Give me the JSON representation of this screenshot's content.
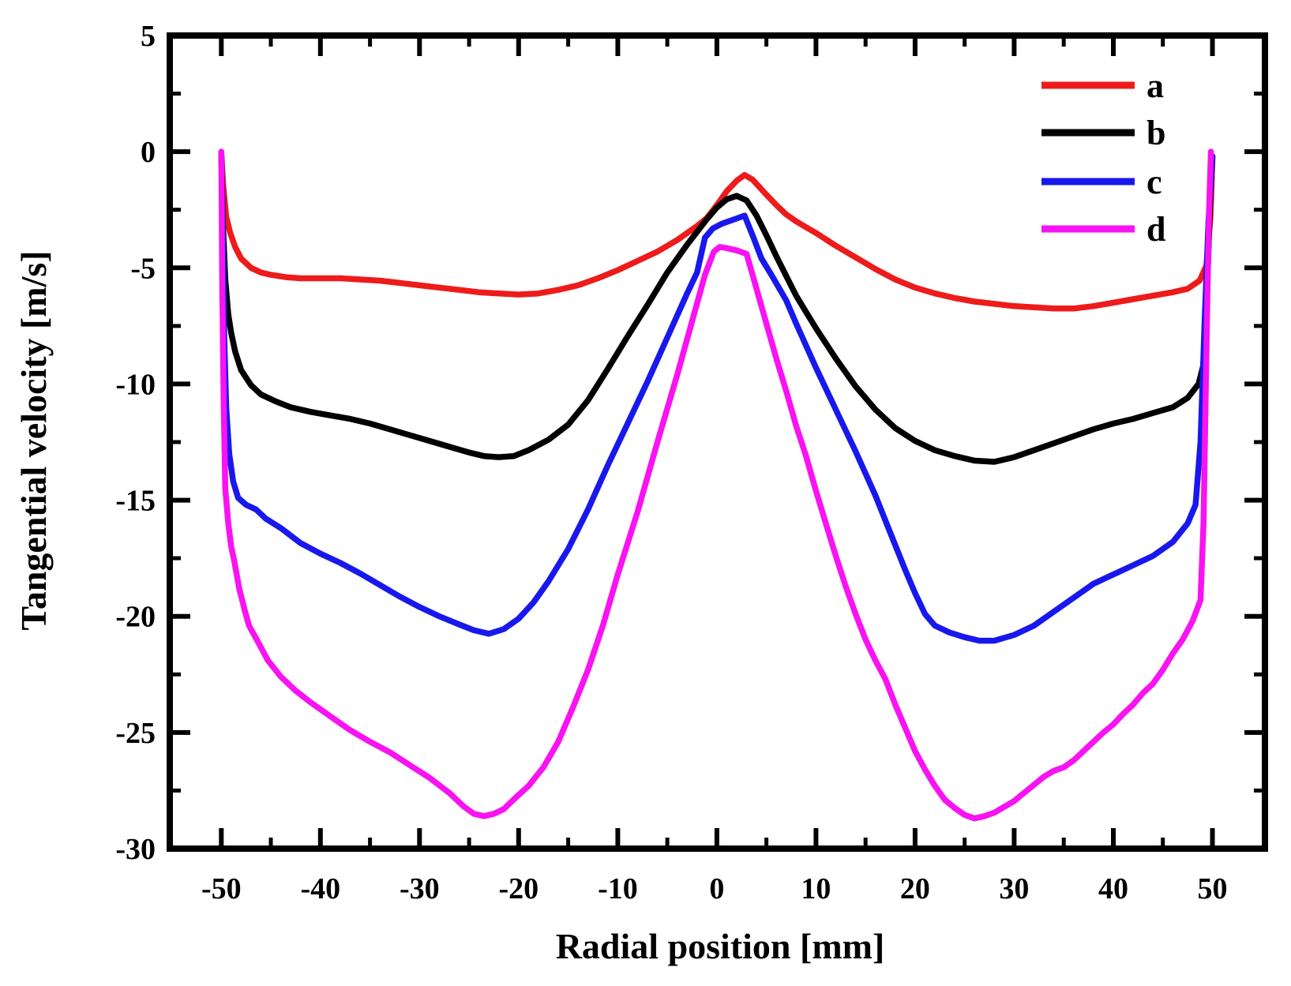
{
  "figure": {
    "background": "#ffffff"
  },
  "chart_data": {
    "type": "line",
    "title": "",
    "xlabel": "Radial position [mm]",
    "ylabel": "Tangential velocity [m/s]",
    "xlim": [
      -55.2,
      55.3
    ],
    "ylim": [
      -30,
      5
    ],
    "grid": "off",
    "legend_position": "top-right-inside",
    "frame_color": "#000000",
    "x_major_ticks": [
      -50,
      -40,
      -30,
      -20,
      -10,
      0,
      10,
      20,
      30,
      40,
      50
    ],
    "x_tick_labels": [
      "-50",
      "-40",
      "-30",
      "-20",
      "-10",
      "0",
      "10",
      "20",
      "30",
      "40",
      "50"
    ],
    "x_minor_ticks": [
      -45,
      -35,
      -25,
      -15,
      -5,
      5,
      15,
      25,
      35,
      45
    ],
    "y_major_ticks": [
      5,
      0,
      -5,
      -10,
      -15,
      -20,
      -25,
      -30
    ],
    "y_tick_labels": [
      "5",
      "0",
      "-5",
      "-10",
      "-15",
      "-20",
      "-25",
      "-30"
    ],
    "y_minor_ticks": [
      2.5,
      -2.5,
      -7.5,
      -12.5,
      -17.5,
      -22.5,
      -27.5
    ],
    "series": [
      {
        "name": "a",
        "color": "#ee1b1b",
        "points": [
          [
            -50,
            -0.1
          ],
          [
            -49.8,
            -1.5
          ],
          [
            -49.5,
            -2.8
          ],
          [
            -49.1,
            -3.5
          ],
          [
            -48.6,
            -4.1
          ],
          [
            -48,
            -4.6
          ],
          [
            -47,
            -5.0
          ],
          [
            -46,
            -5.2
          ],
          [
            -45,
            -5.3
          ],
          [
            -43.5,
            -5.4
          ],
          [
            -42,
            -5.45
          ],
          [
            -40,
            -5.45
          ],
          [
            -38,
            -5.45
          ],
          [
            -36,
            -5.5
          ],
          [
            -34,
            -5.55
          ],
          [
            -32,
            -5.65
          ],
          [
            -30,
            -5.75
          ],
          [
            -28,
            -5.85
          ],
          [
            -26,
            -5.95
          ],
          [
            -24,
            -6.05
          ],
          [
            -22,
            -6.1
          ],
          [
            -20,
            -6.15
          ],
          [
            -18,
            -6.1
          ],
          [
            -16,
            -5.95
          ],
          [
            -14,
            -5.75
          ],
          [
            -12,
            -5.45
          ],
          [
            -10,
            -5.1
          ],
          [
            -8,
            -4.7
          ],
          [
            -6,
            -4.3
          ],
          [
            -4,
            -3.8
          ],
          [
            -2,
            -3.2
          ],
          [
            -1,
            -2.85
          ],
          [
            0,
            -2.3
          ],
          [
            1,
            -1.7
          ],
          [
            2,
            -1.25
          ],
          [
            2.8,
            -1.0
          ],
          [
            3.6,
            -1.2
          ],
          [
            5,
            -1.85
          ],
          [
            6,
            -2.3
          ],
          [
            7,
            -2.7
          ],
          [
            8,
            -3.0
          ],
          [
            9,
            -3.25
          ],
          [
            10,
            -3.5
          ],
          [
            12,
            -4.05
          ],
          [
            14,
            -4.55
          ],
          [
            16,
            -5.05
          ],
          [
            18,
            -5.5
          ],
          [
            20,
            -5.85
          ],
          [
            22,
            -6.1
          ],
          [
            24,
            -6.3
          ],
          [
            26,
            -6.45
          ],
          [
            28,
            -6.55
          ],
          [
            30,
            -6.65
          ],
          [
            32,
            -6.7
          ],
          [
            34,
            -6.75
          ],
          [
            36,
            -6.75
          ],
          [
            38,
            -6.65
          ],
          [
            40,
            -6.5
          ],
          [
            42,
            -6.35
          ],
          [
            44,
            -6.2
          ],
          [
            46,
            -6.05
          ],
          [
            47.5,
            -5.9
          ],
          [
            48.7,
            -5.55
          ],
          [
            49.4,
            -4.9
          ],
          [
            49.8,
            -2.8
          ],
          [
            50,
            -0.3
          ]
        ]
      },
      {
        "name": "b",
        "color": "#000000",
        "points": [
          [
            -50,
            -0.1
          ],
          [
            -49.85,
            -3.0
          ],
          [
            -49.6,
            -5.5
          ],
          [
            -49.3,
            -7.0
          ],
          [
            -49,
            -7.8
          ],
          [
            -48.6,
            -8.6
          ],
          [
            -48,
            -9.4
          ],
          [
            -47,
            -10.05
          ],
          [
            -46,
            -10.45
          ],
          [
            -44.5,
            -10.75
          ],
          [
            -43,
            -11.0
          ],
          [
            -41,
            -11.2
          ],
          [
            -39,
            -11.35
          ],
          [
            -37,
            -11.5
          ],
          [
            -35,
            -11.7
          ],
          [
            -33,
            -11.95
          ],
          [
            -31,
            -12.2
          ],
          [
            -29,
            -12.45
          ],
          [
            -27,
            -12.7
          ],
          [
            -25,
            -12.95
          ],
          [
            -23.5,
            -13.1
          ],
          [
            -22,
            -13.15
          ],
          [
            -20.5,
            -13.1
          ],
          [
            -19,
            -12.85
          ],
          [
            -17,
            -12.4
          ],
          [
            -15,
            -11.75
          ],
          [
            -13,
            -10.7
          ],
          [
            -11,
            -9.35
          ],
          [
            -9,
            -7.95
          ],
          [
            -7,
            -6.6
          ],
          [
            -5,
            -5.2
          ],
          [
            -3,
            -4.0
          ],
          [
            -1,
            -2.9
          ],
          [
            0,
            -2.4
          ],
          [
            1,
            -2.05
          ],
          [
            2,
            -1.9
          ],
          [
            3,
            -2.1
          ],
          [
            4,
            -2.75
          ],
          [
            5,
            -3.6
          ],
          [
            6,
            -4.5
          ],
          [
            7,
            -5.35
          ],
          [
            8,
            -6.2
          ],
          [
            9,
            -6.9
          ],
          [
            10,
            -7.6
          ],
          [
            12,
            -8.9
          ],
          [
            14,
            -10.1
          ],
          [
            16,
            -11.1
          ],
          [
            18,
            -11.9
          ],
          [
            20,
            -12.45
          ],
          [
            22,
            -12.85
          ],
          [
            24,
            -13.1
          ],
          [
            26,
            -13.3
          ],
          [
            28,
            -13.35
          ],
          [
            30,
            -13.15
          ],
          [
            32,
            -12.85
          ],
          [
            34,
            -12.55
          ],
          [
            36,
            -12.25
          ],
          [
            38,
            -11.95
          ],
          [
            40,
            -11.7
          ],
          [
            42,
            -11.5
          ],
          [
            44,
            -11.25
          ],
          [
            46,
            -11.0
          ],
          [
            47.5,
            -10.6
          ],
          [
            48.6,
            -10.0
          ],
          [
            49.2,
            -9.0
          ],
          [
            49.5,
            -5.5
          ],
          [
            49.8,
            -1.8
          ],
          [
            50,
            -0.2
          ]
        ]
      },
      {
        "name": "c",
        "color": "#1818ee",
        "points": [
          [
            -50,
            -0.1
          ],
          [
            -49.85,
            -4.0
          ],
          [
            -49.7,
            -8.0
          ],
          [
            -49.5,
            -11.0
          ],
          [
            -49.2,
            -13.0
          ],
          [
            -48.8,
            -14.2
          ],
          [
            -48.3,
            -14.9
          ],
          [
            -47.5,
            -15.2
          ],
          [
            -46.5,
            -15.4
          ],
          [
            -45.5,
            -15.8
          ],
          [
            -44,
            -16.2
          ],
          [
            -42,
            -16.85
          ],
          [
            -40,
            -17.3
          ],
          [
            -38,
            -17.7
          ],
          [
            -36,
            -18.15
          ],
          [
            -34,
            -18.65
          ],
          [
            -32,
            -19.15
          ],
          [
            -30,
            -19.6
          ],
          [
            -28,
            -20.0
          ],
          [
            -26,
            -20.35
          ],
          [
            -24.5,
            -20.6
          ],
          [
            -23,
            -20.75
          ],
          [
            -21.5,
            -20.55
          ],
          [
            -20,
            -20.1
          ],
          [
            -18.5,
            -19.4
          ],
          [
            -17,
            -18.5
          ],
          [
            -15,
            -17.1
          ],
          [
            -13,
            -15.4
          ],
          [
            -11,
            -13.5
          ],
          [
            -9,
            -11.7
          ],
          [
            -7,
            -9.9
          ],
          [
            -5,
            -8.0
          ],
          [
            -3,
            -6.1
          ],
          [
            -2,
            -5.2
          ],
          [
            -1.2,
            -3.7
          ],
          [
            -0.4,
            -3.3
          ],
          [
            0.5,
            -3.1
          ],
          [
            1.5,
            -2.95
          ],
          [
            2.8,
            -2.75
          ],
          [
            3.6,
            -3.6
          ],
          [
            4.5,
            -4.6
          ],
          [
            5.5,
            -5.3
          ],
          [
            7,
            -6.4
          ],
          [
            8,
            -7.4
          ],
          [
            10,
            -9.3
          ],
          [
            12,
            -11.1
          ],
          [
            14,
            -12.9
          ],
          [
            16,
            -14.8
          ],
          [
            17.5,
            -16.4
          ],
          [
            19,
            -18.0
          ],
          [
            20,
            -19.0
          ],
          [
            21,
            -19.9
          ],
          [
            22,
            -20.4
          ],
          [
            23.5,
            -20.7
          ],
          [
            25,
            -20.9
          ],
          [
            26.5,
            -21.05
          ],
          [
            28,
            -21.05
          ],
          [
            30,
            -20.8
          ],
          [
            32,
            -20.4
          ],
          [
            34,
            -19.8
          ],
          [
            36,
            -19.2
          ],
          [
            38,
            -18.6
          ],
          [
            40,
            -18.2
          ],
          [
            42,
            -17.8
          ],
          [
            44,
            -17.4
          ],
          [
            46,
            -16.8
          ],
          [
            47.5,
            -16.0
          ],
          [
            48.3,
            -15.2
          ],
          [
            48.8,
            -12.5
          ],
          [
            49.2,
            -7.5
          ],
          [
            49.6,
            -3.0
          ],
          [
            50,
            -0.2
          ]
        ]
      },
      {
        "name": "d",
        "color": "#f912f2",
        "points": [
          [
            -50,
            0.0
          ],
          [
            -49.9,
            -6.0
          ],
          [
            -49.75,
            -11.0
          ],
          [
            -49.6,
            -14.5
          ],
          [
            -49.3,
            -16.0
          ],
          [
            -49,
            -17.0
          ],
          [
            -48.7,
            -17.6
          ],
          [
            -48.2,
            -18.8
          ],
          [
            -47.6,
            -19.8
          ],
          [
            -47.2,
            -20.4
          ],
          [
            -46.3,
            -21.1
          ],
          [
            -45.3,
            -21.9
          ],
          [
            -44,
            -22.6
          ],
          [
            -42.5,
            -23.2
          ],
          [
            -41,
            -23.7
          ],
          [
            -39,
            -24.3
          ],
          [
            -37,
            -24.9
          ],
          [
            -35,
            -25.4
          ],
          [
            -33,
            -25.85
          ],
          [
            -31,
            -26.4
          ],
          [
            -29,
            -26.95
          ],
          [
            -27,
            -27.6
          ],
          [
            -25.5,
            -28.2
          ],
          [
            -24.5,
            -28.5
          ],
          [
            -23.5,
            -28.6
          ],
          [
            -22.5,
            -28.5
          ],
          [
            -21.5,
            -28.3
          ],
          [
            -20.3,
            -27.8
          ],
          [
            -19,
            -27.3
          ],
          [
            -17.5,
            -26.5
          ],
          [
            -16,
            -25.4
          ],
          [
            -14.5,
            -23.9
          ],
          [
            -13,
            -22.3
          ],
          [
            -11.5,
            -20.4
          ],
          [
            -10,
            -18.2
          ],
          [
            -8,
            -15.5
          ],
          [
            -6,
            -12.5
          ],
          [
            -4,
            -9.6
          ],
          [
            -2.5,
            -7.3
          ],
          [
            -1.2,
            -5.3
          ],
          [
            -0.3,
            -4.3
          ],
          [
            0.3,
            -4.1
          ],
          [
            1,
            -4.15
          ],
          [
            2,
            -4.25
          ],
          [
            3,
            -4.4
          ],
          [
            3.8,
            -5.6
          ],
          [
            5,
            -7.4
          ],
          [
            6,
            -8.9
          ],
          [
            7,
            -10.3
          ],
          [
            8,
            -11.8
          ],
          [
            9,
            -13.1
          ],
          [
            10,
            -14.6
          ],
          [
            11,
            -16.0
          ],
          [
            12,
            -17.4
          ],
          [
            13,
            -18.7
          ],
          [
            14,
            -19.9
          ],
          [
            15,
            -21.0
          ],
          [
            16,
            -21.9
          ],
          [
            17,
            -22.7
          ],
          [
            18,
            -23.8
          ],
          [
            19,
            -24.8
          ],
          [
            20,
            -25.8
          ],
          [
            21,
            -26.6
          ],
          [
            22,
            -27.3
          ],
          [
            23,
            -27.9
          ],
          [
            24,
            -28.25
          ],
          [
            25,
            -28.55
          ],
          [
            26,
            -28.7
          ],
          [
            27,
            -28.6
          ],
          [
            28,
            -28.45
          ],
          [
            29,
            -28.2
          ],
          [
            30,
            -27.95
          ],
          [
            31,
            -27.6
          ],
          [
            32,
            -27.25
          ],
          [
            33,
            -26.9
          ],
          [
            34,
            -26.65
          ],
          [
            35,
            -26.5
          ],
          [
            36,
            -26.2
          ],
          [
            37,
            -25.8
          ],
          [
            38,
            -25.4
          ],
          [
            39,
            -25.0
          ],
          [
            40,
            -24.65
          ],
          [
            41,
            -24.2
          ],
          [
            42,
            -23.8
          ],
          [
            43,
            -23.3
          ],
          [
            44,
            -22.9
          ],
          [
            45,
            -22.3
          ],
          [
            46,
            -21.6
          ],
          [
            47,
            -21.0
          ],
          [
            48,
            -20.2
          ],
          [
            48.8,
            -19.3
          ],
          [
            49.1,
            -16.0
          ],
          [
            49.3,
            -11.0
          ],
          [
            49.5,
            -6.0
          ],
          [
            49.7,
            -2.0
          ],
          [
            49.85,
            0.0
          ]
        ]
      }
    ]
  }
}
